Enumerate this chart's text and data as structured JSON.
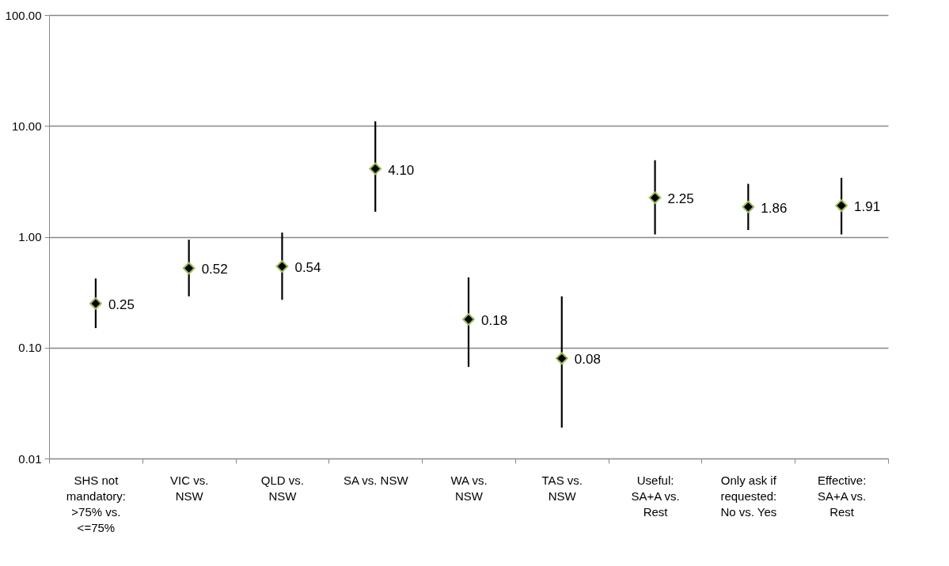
{
  "chart_data": {
    "type": "scatter",
    "categories": [
      "SHS not mandatory: >75% vs. <=75%",
      "VIC vs. NSW",
      "QLD vs. NSW",
      "SA vs. NSW",
      "WA vs. NSW",
      "TAS vs. NSW",
      "Useful: SA+A vs. Rest",
      "Only ask if requested: No vs. Yes",
      "Effective: SA+A vs. Rest"
    ],
    "series": [
      {
        "color": "#000000",
        "values": [
          0.25,
          0.52,
          0.54,
          4.1,
          0.18,
          0.08,
          2.25,
          1.86,
          1.91
        ],
        "value_labels": [
          "0.25",
          "0.52",
          "0.54",
          "4.10",
          "0.18",
          "0.08",
          "2.25",
          "1.86",
          "1.91"
        ],
        "errors": [
          [
            0.15,
            0.42
          ],
          [
            0.29,
            0.94
          ],
          [
            0.27,
            1.09
          ],
          [
            1.68,
            11.0
          ],
          [
            0.067,
            0.43
          ],
          [
            0.019,
            0.29
          ],
          [
            1.05,
            4.9
          ],
          [
            1.15,
            3.0
          ],
          [
            1.05,
            3.4
          ]
        ]
      }
    ],
    "log": "y",
    "ylim": [
      0.01,
      100
    ],
    "yticks": [
      {
        "value": 0.01,
        "label": "0.01"
      },
      {
        "value": 0.1,
        "label": "0.10"
      },
      {
        "value": 1,
        "label": "1.00"
      },
      {
        "value": 10,
        "label": "10.00"
      },
      {
        "value": 100,
        "label": "100.00"
      }
    ],
    "grid": "y",
    "marker": "diamond"
  }
}
